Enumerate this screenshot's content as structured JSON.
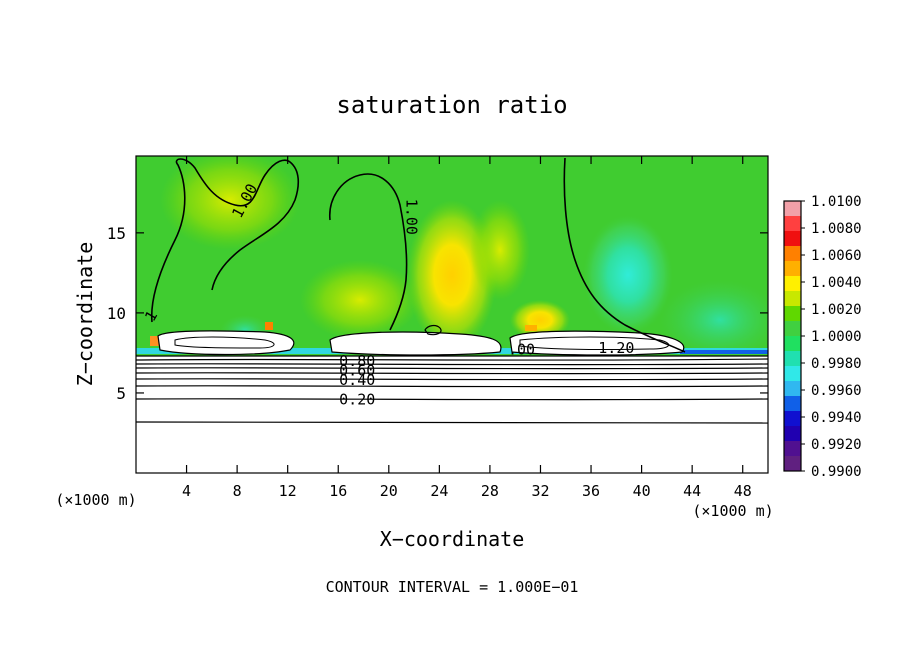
{
  "chart_data": {
    "type": "heatmap",
    "title": "saturation ratio",
    "xlabel": "X−coordinate",
    "ylabel": "Z−coordinate",
    "x_unit_left": "(×1000 m)",
    "x_unit_right": "(×1000 m)",
    "footer": "CONTOUR INTERVAL = 1.000E−01",
    "xlim": [
      0,
      50
    ],
    "ylim": [
      0,
      19.8
    ],
    "x_ticks": [
      4,
      8,
      12,
      16,
      20,
      24,
      28,
      32,
      36,
      40,
      44,
      48
    ],
    "x_tick_labels": [
      "4",
      "8",
      "12",
      "16",
      "20",
      "24",
      "28",
      "32",
      "36",
      "40",
      "44",
      "48"
    ],
    "y_ticks": [
      5,
      10,
      15
    ],
    "y_tick_labels": [
      "5",
      "10",
      "15"
    ],
    "colorbar": {
      "min": 0.99,
      "max": 1.01,
      "labels": [
        "1.0100",
        "1.0080",
        "1.0060",
        "1.0040",
        "1.0020",
        "1.0000",
        "0.9980",
        "0.9960",
        "0.9940",
        "0.9920",
        "0.9900"
      ],
      "colors": [
        "#f2a0a8",
        "#ff4040",
        "#f01010",
        "#ff8000",
        "#ffb000",
        "#fff000",
        "#c8e800",
        "#60d800",
        "#40d040",
        "#20e060",
        "#20e0b0",
        "#30e8e8",
        "#30b8f0",
        "#1060e8",
        "#1010d0",
        "#2000b0",
        "#501090",
        "#602080"
      ]
    },
    "contour_labels": [
      {
        "text": "1.00",
        "x": 8.6,
        "z": 17.0,
        "angle": -62
      },
      {
        "text": "1.00",
        "x": 21.8,
        "z": 16.0,
        "angle": 90
      },
      {
        "text": "1.20",
        "x": 38.0,
        "z": 7.8,
        "angle": 0
      },
      {
        "text": ".00",
        "x": 30.5,
        "z": 7.7,
        "angle": 0
      },
      {
        "text": "0.80",
        "x": 17.5,
        "z": 7.0,
        "angle": 0
      },
      {
        "text": "0.60",
        "x": 17.5,
        "z": 6.4,
        "angle": 0
      },
      {
        "text": "0.40",
        "x": 17.5,
        "z": 5.8,
        "angle": 0
      },
      {
        "text": "0.20",
        "x": 17.5,
        "z": 4.6,
        "angle": 0
      },
      {
        "text": "1",
        "x": 1.2,
        "z": 9.8,
        "angle": -60
      }
    ],
    "contour_levels": [
      0.2,
      0.4,
      0.6,
      0.8,
      1.0,
      1.2
    ]
  }
}
